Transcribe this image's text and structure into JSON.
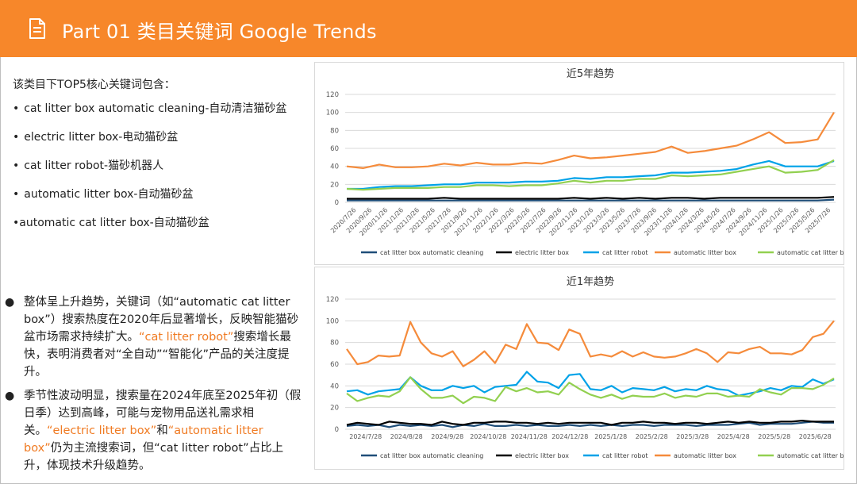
{
  "header": {
    "title": "Part 01 类目关键词 Google Trends",
    "icon": "document-icon",
    "color": "#f7872a"
  },
  "left": {
    "intro": "该类目下TOP5核心关键词包含：",
    "keywords": [
      "cat litter box automatic cleaning-自动清洁猫砂盆",
      "electric litter box-电动猫砂盆",
      "cat litter robot-猫砂机器人",
      "automatic litter box-自动猫砂盆",
      "automatic cat litter box-自动猫砂盆"
    ],
    "para1": {
      "a": "整体呈上升趋势，关键词（如“automatic cat litter box”）搜索热度在2020年后显著增长，反映智能猫砂盆市场需求持续扩大。",
      "hl": "“cat litter robot”",
      "b": "搜索增长最快，表明消费者对“全自动”“智能化”产品的关注度提升。"
    },
    "para2": {
      "a": "季节性波动明显，搜索量在2024年底至2025年初（假日季）达到高峰，可能与宠物用品送礼需求相关。",
      "hl1": "“electric litter box”",
      "mid": "和",
      "hl2": "“automatic litter box”",
      "b": "仍为主流搜索词，但“cat litter robot”占比上升，体现技术升级趋势。"
    }
  },
  "chart_data": [
    {
      "type": "line",
      "title": "近5年趋势",
      "xlabel": "",
      "ylabel": "",
      "ylim": [
        0,
        120
      ],
      "yticks": [
        0,
        20,
        40,
        60,
        80,
        100,
        120
      ],
      "grid": true,
      "legend": "bottom",
      "x_ticks": [
        "2020/7/26",
        "2020/9/26",
        "2020/11/26",
        "2021/1/26",
        "2021/3/26",
        "2021/5/26",
        "2021/7/26",
        "2021/9/26",
        "2021/11/26",
        "2022/1/26",
        "2022/3/26",
        "2022/5/26",
        "2022/7/26",
        "2022/9/26",
        "2022/11/26",
        "2023/1/26",
        "2023/3/26",
        "2023/5/26",
        "2023/7/26",
        "2023/9/26",
        "2023/11/26",
        "2024/1/26",
        "2024/3/26",
        "2024/5/26",
        "2024/7/26",
        "2024/9/26",
        "2024/11/26",
        "2025/1/26",
        "2025/3/26",
        "2025/5/26",
        "2025/7/26"
      ],
      "series": [
        {
          "name": "cat litter box automatic cleaning",
          "color": "#1f4e79",
          "values": [
            2,
            2,
            2,
            2,
            2,
            2,
            2,
            2,
            2,
            2,
            2,
            2,
            2,
            2,
            2,
            2,
            2,
            2,
            2,
            2,
            2,
            2,
            2,
            2,
            2,
            2,
            2,
            2,
            2,
            2,
            3
          ]
        },
        {
          "name": "electric litter box",
          "color": "#000000",
          "values": [
            4,
            4,
            4,
            4,
            4,
            4,
            5,
            4,
            4,
            4,
            4,
            4,
            4,
            4,
            5,
            4,
            5,
            4,
            5,
            4,
            5,
            5,
            4,
            5,
            5,
            5,
            5,
            5,
            5,
            5,
            6
          ]
        },
        {
          "name": "cat litter robot",
          "color": "#00a2e8",
          "values": [
            15,
            15,
            17,
            18,
            18,
            19,
            20,
            20,
            22,
            22,
            22,
            23,
            23,
            24,
            27,
            26,
            28,
            28,
            29,
            30,
            33,
            33,
            34,
            35,
            37,
            42,
            46,
            40,
            40,
            40,
            46
          ]
        },
        {
          "name": "automatic litter box",
          "color": "#f58b3b",
          "values": [
            40,
            38,
            42,
            39,
            39,
            40,
            43,
            41,
            44,
            42,
            42,
            44,
            43,
            47,
            52,
            49,
            50,
            52,
            54,
            56,
            62,
            55,
            57,
            60,
            63,
            70,
            78,
            66,
            67,
            70,
            100
          ]
        },
        {
          "name": "automatic cat litter box",
          "color": "#92d050",
          "values": [
            15,
            14,
            15,
            16,
            16,
            16,
            17,
            17,
            19,
            19,
            18,
            19,
            19,
            21,
            24,
            22,
            24,
            24,
            26,
            26,
            30,
            29,
            30,
            31,
            34,
            37,
            40,
            33,
            34,
            36,
            47
          ]
        }
      ]
    },
    {
      "type": "line",
      "title": "近1年趋势",
      "xlabel": "",
      "ylabel": "",
      "ylim": [
        0,
        120
      ],
      "yticks": [
        0,
        20,
        40,
        60,
        80,
        100,
        120
      ],
      "grid": true,
      "legend": "bottom",
      "x_ticks": [
        "2024/7/28",
        "2024/8/28",
        "2024/9/28",
        "2024/10/28",
        "2024/11/28",
        "2024/12/28",
        "2025/1/28",
        "2025/2/28",
        "2025/3/28",
        "2025/4/28",
        "2025/5/28",
        "2025/6/28"
      ],
      "series": [
        {
          "name": "cat litter box automatic cleaning",
          "color": "#1f4e79",
          "values": [
            3,
            4,
            3,
            4,
            2,
            4,
            3,
            4,
            3,
            4,
            2,
            4,
            3,
            5,
            3,
            3,
            4,
            3,
            4,
            3,
            3,
            4,
            3,
            4,
            3,
            4,
            3,
            4,
            4,
            3,
            4,
            4,
            4,
            3,
            4,
            4,
            4,
            5,
            6,
            4,
            5,
            5,
            5,
            6,
            7,
            6,
            6
          ]
        },
        {
          "name": "electric litter box",
          "color": "#000000",
          "values": [
            4,
            6,
            5,
            4,
            7,
            6,
            5,
            5,
            4,
            7,
            5,
            4,
            6,
            6,
            7,
            7,
            6,
            6,
            5,
            6,
            5,
            6,
            6,
            6,
            6,
            4,
            6,
            6,
            7,
            6,
            6,
            5,
            6,
            6,
            5,
            6,
            7,
            6,
            7,
            6,
            6,
            7,
            7,
            8,
            7,
            7,
            7
          ]
        },
        {
          "name": "cat litter robot",
          "color": "#00a2e8",
          "values": [
            35,
            36,
            32,
            35,
            36,
            37,
            48,
            40,
            36,
            36,
            40,
            38,
            40,
            34,
            39,
            40,
            41,
            53,
            44,
            43,
            38,
            50,
            51,
            37,
            36,
            40,
            34,
            38,
            37,
            36,
            39,
            35,
            37,
            36,
            40,
            37,
            36,
            31,
            33,
            35,
            38,
            36,
            40,
            39,
            46,
            42,
            46
          ]
        },
        {
          "name": "automatic litter box",
          "color": "#f58b3b",
          "values": [
            74,
            60,
            62,
            68,
            67,
            68,
            99,
            80,
            70,
            67,
            72,
            58,
            64,
            72,
            61,
            78,
            74,
            97,
            80,
            79,
            73,
            92,
            88,
            67,
            69,
            67,
            72,
            67,
            71,
            67,
            66,
            67,
            70,
            74,
            70,
            62,
            71,
            70,
            74,
            76,
            70,
            70,
            69,
            73,
            85,
            88,
            100
          ]
        },
        {
          "name": "automatic cat litter box",
          "color": "#92d050",
          "values": [
            33,
            26,
            29,
            31,
            30,
            35,
            48,
            37,
            29,
            29,
            31,
            24,
            30,
            29,
            26,
            39,
            35,
            38,
            34,
            35,
            32,
            43,
            37,
            32,
            29,
            32,
            28,
            31,
            30,
            30,
            33,
            29,
            31,
            30,
            33,
            33,
            30,
            31,
            30,
            37,
            34,
            32,
            38,
            38,
            37,
            41,
            47
          ]
        }
      ]
    }
  ]
}
